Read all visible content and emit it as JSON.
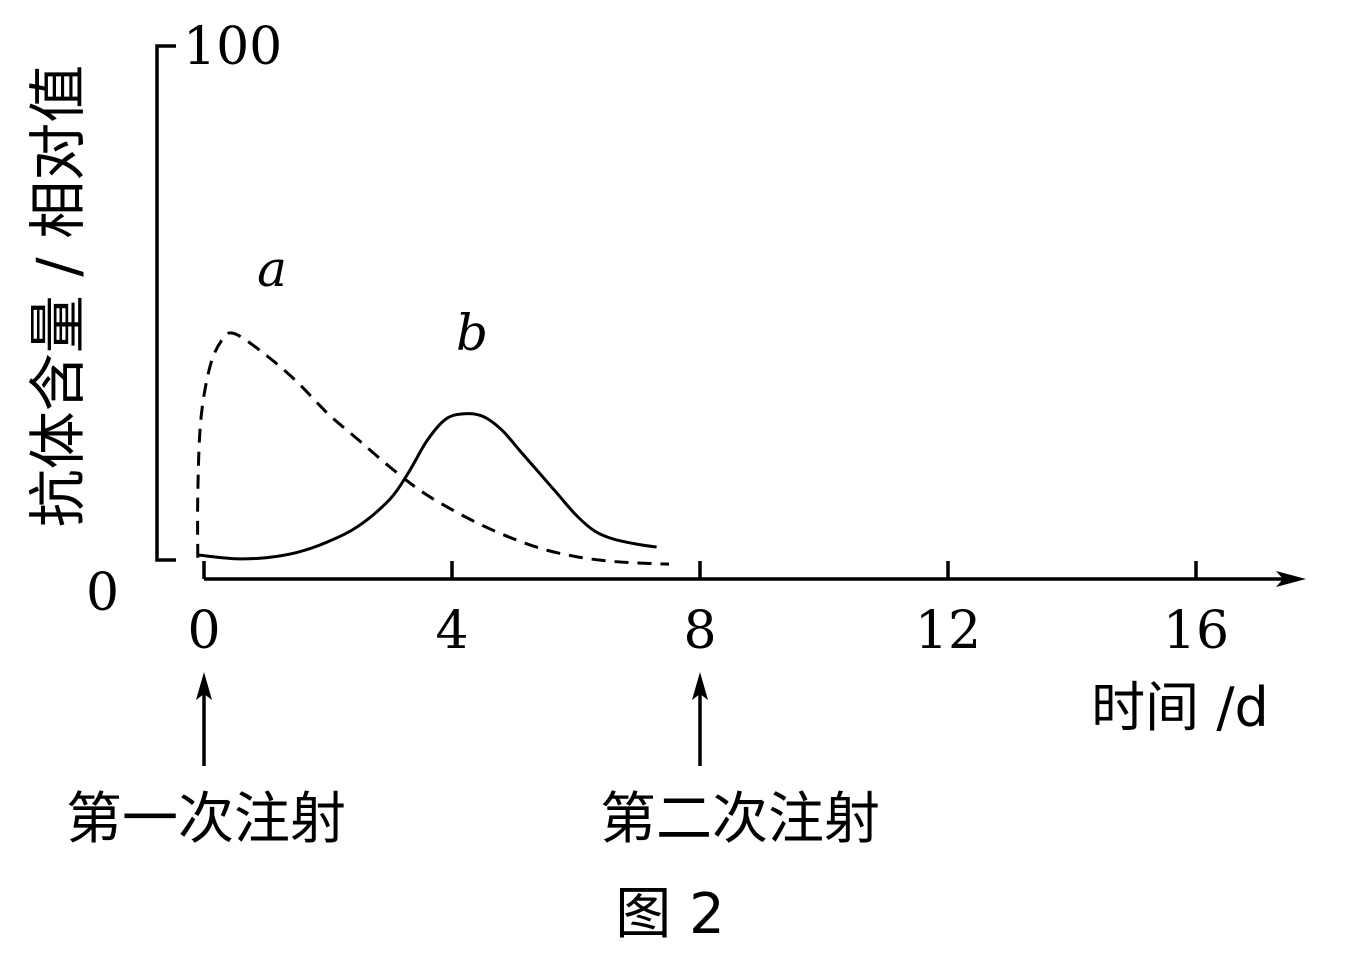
{
  "chart_data": {
    "type": "line",
    "title": "",
    "caption": "图 2",
    "ylabel": "抗体含量 / 相对值",
    "xlabel": "时间 /d",
    "xlim": [
      0,
      18
    ],
    "ylim": [
      0,
      100
    ],
    "x_ticks": [
      "0",
      "4",
      "8",
      "12",
      "16"
    ],
    "y_ticks": [
      "0",
      "100"
    ],
    "grid": false,
    "series": [
      {
        "name": "a",
        "style": "dashed",
        "x": [
          -0.1,
          -0.1,
          -0.05,
          0.1,
          0.3,
          0.5,
          1.0,
          1.5,
          2.0,
          2.5,
          3.0,
          3.5,
          4.0,
          4.5,
          5.0,
          5.5,
          6.0,
          6.5,
          7.0,
          7.5
        ],
        "y": [
          4,
          16,
          30,
          40,
          45,
          46,
          42,
          37,
          31,
          26,
          21,
          16.5,
          13,
          10,
          7.5,
          5.5,
          4.2,
          3.4,
          3,
          2.8
        ]
      },
      {
        "name": "b",
        "style": "solid",
        "x": [
          -0.1,
          0.5,
          1.0,
          1.5,
          2.0,
          2.5,
          3.0,
          3.3,
          3.6,
          3.9,
          4.2,
          4.5,
          4.8,
          5.1,
          5.4,
          5.7,
          6.0,
          6.3,
          6.6,
          7.0,
          7.3
        ],
        "y": [
          4.5,
          3.8,
          4,
          5,
          7,
          10,
          15,
          20,
          26,
          30,
          31,
          30.5,
          28,
          24,
          20,
          16,
          12,
          9,
          7.5,
          6.5,
          6
        ]
      }
    ],
    "annotations": [
      {
        "text": "第一次注射",
        "x": 0
      },
      {
        "text": "第二次注射",
        "x": 8
      }
    ]
  }
}
